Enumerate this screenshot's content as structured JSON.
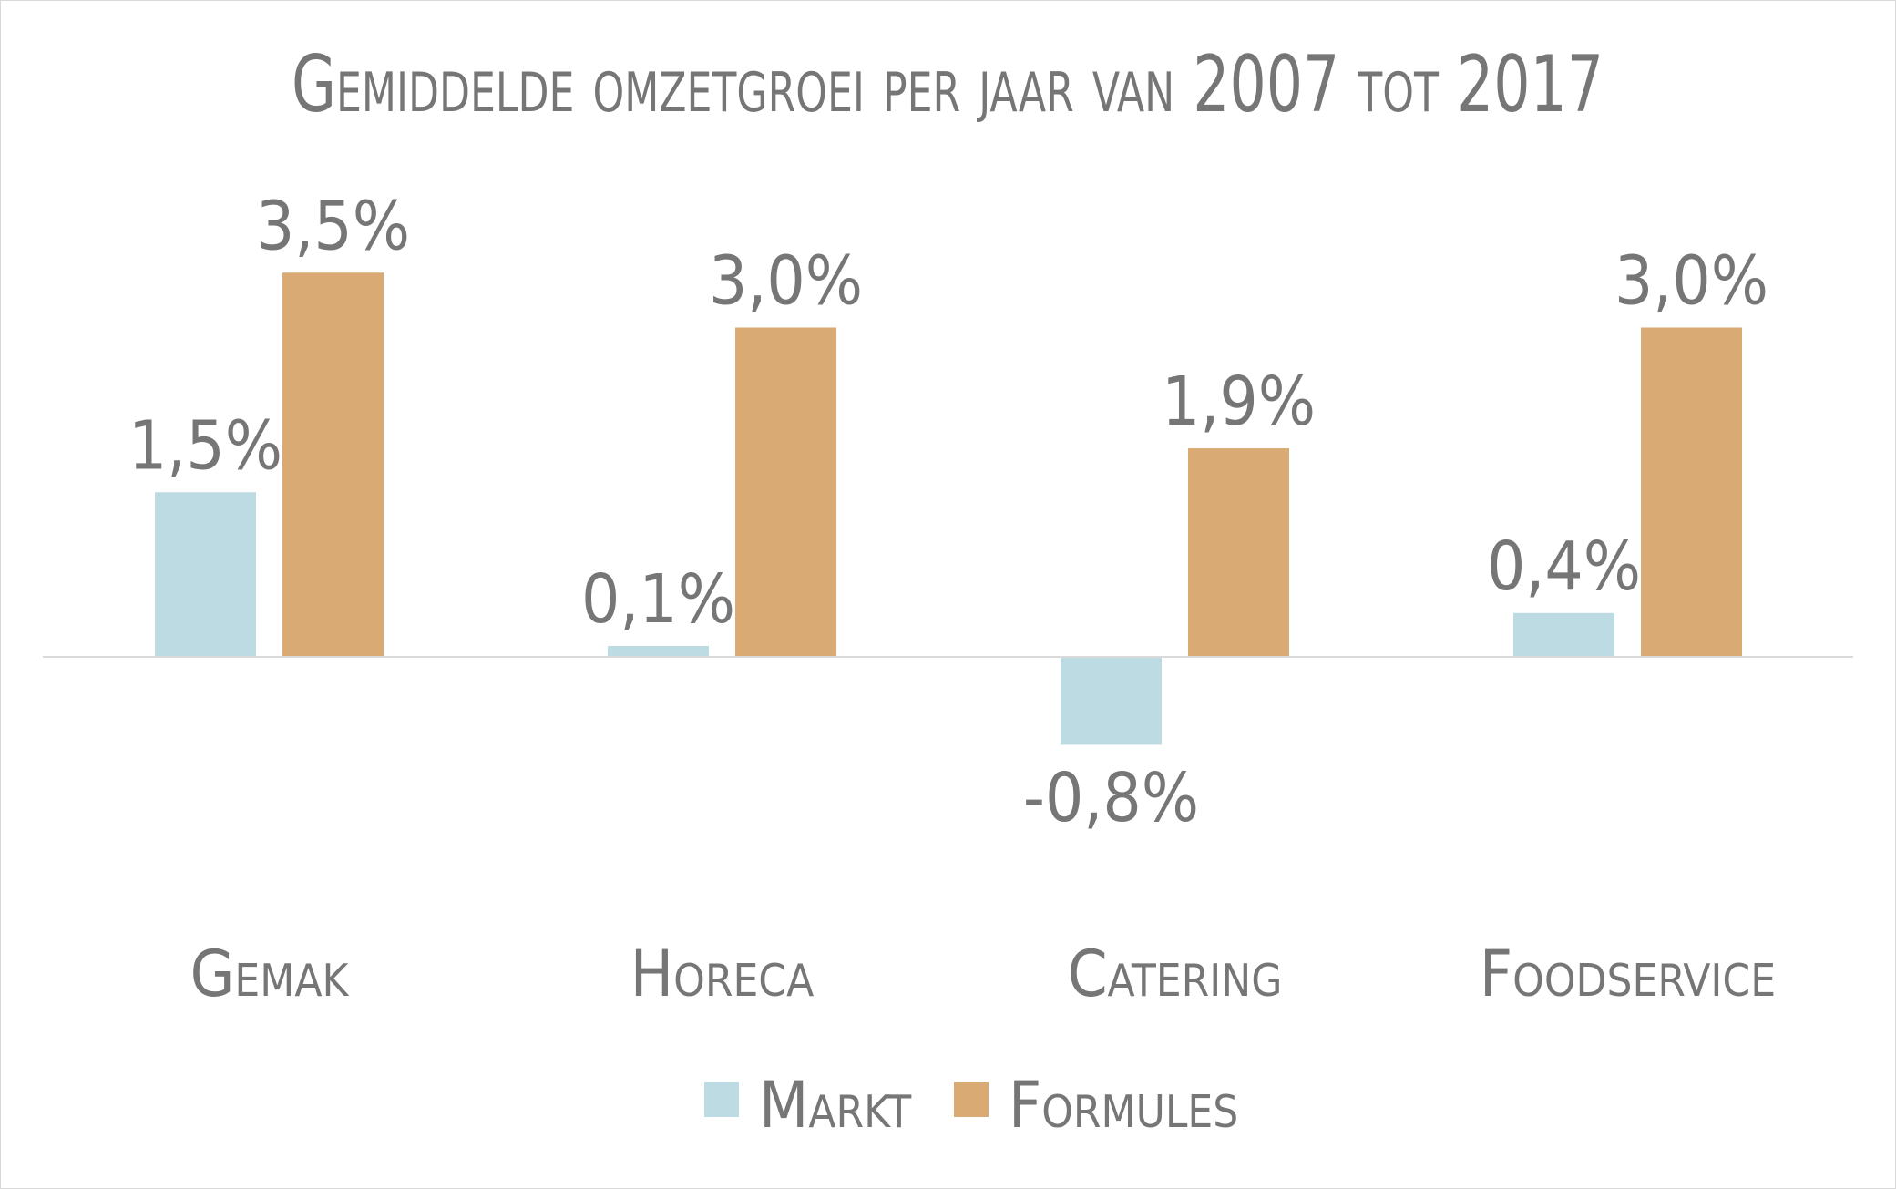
{
  "chart_data": {
    "type": "bar",
    "title": "Gemiddelde omzetgroei per jaar van 2007 tot 2017",
    "categories": [
      "Gemak",
      "Horeca",
      "Catering",
      "Foodservice"
    ],
    "series": [
      {
        "name": "Markt",
        "color": "#bddbe3",
        "values": [
          1.5,
          0.1,
          -0.8,
          0.4
        ],
        "labels": [
          "1,5%",
          "0,1%",
          "-0,8%",
          "0,4%"
        ]
      },
      {
        "name": "Formules",
        "color": "#d9aa73",
        "values": [
          3.5,
          3.0,
          1.9,
          3.0
        ],
        "labels": [
          "3,5%",
          "3,0%",
          "1,9%",
          "3,0%"
        ]
      }
    ],
    "xlabel": "",
    "ylabel": "",
    "ylim": [
      -2.5,
      4.2
    ],
    "grid": false,
    "legend_position": "bottom",
    "axis_color": "#d9d9d9"
  }
}
